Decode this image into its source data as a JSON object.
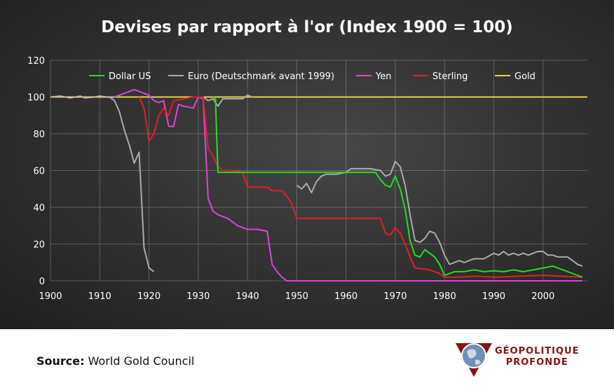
{
  "chart_data": {
    "type": "line",
    "title": "Devises par rapport à l'or (Index 1900 = 100)",
    "xlabel": "",
    "ylabel": "",
    "xlim": [
      1900,
      2009
    ],
    "ylim": [
      0,
      120
    ],
    "xticks": [
      1900,
      1910,
      1920,
      1930,
      1940,
      1950,
      1960,
      1970,
      1980,
      1990,
      2000
    ],
    "yticks": [
      0,
      20,
      40,
      60,
      80,
      100,
      120
    ],
    "grid": true,
    "legend": "top",
    "series": [
      {
        "name": "Dollar US",
        "color": "#22dd22",
        "points": [
          [
            1933,
            100
          ],
          [
            1933.5,
            99
          ],
          [
            1934,
            59
          ],
          [
            1966,
            59
          ],
          [
            1967,
            55
          ],
          [
            1968,
            52
          ],
          [
            1969,
            51
          ],
          [
            1970,
            57
          ],
          [
            1971,
            50
          ],
          [
            1972,
            39
          ],
          [
            1973,
            22
          ],
          [
            1974,
            14
          ],
          [
            1975,
            13
          ],
          [
            1976,
            17
          ],
          [
            1977,
            15
          ],
          [
            1978,
            13
          ],
          [
            1979,
            9
          ],
          [
            1980,
            3
          ],
          [
            1982,
            5
          ],
          [
            1984,
            5
          ],
          [
            1986,
            6
          ],
          [
            1988,
            5
          ],
          [
            1990,
            5.5
          ],
          [
            1992,
            5
          ],
          [
            1994,
            6
          ],
          [
            1996,
            5
          ],
          [
            1998,
            6
          ],
          [
            2000,
            7
          ],
          [
            2002,
            8
          ],
          [
            2004,
            6
          ],
          [
            2006,
            4
          ],
          [
            2008,
            2
          ]
        ]
      },
      {
        "name": "Euro (Deutschmark avant 1999)",
        "color": "#aaaaaa",
        "segments": [
          [
            [
              1912,
              100
            ],
            [
              1913,
              98
            ],
            [
              1914,
              92
            ],
            [
              1915,
              82
            ],
            [
              1916,
              74
            ],
            [
              1917,
              64
            ],
            [
              1918,
              70
            ],
            [
              1918.5,
              44
            ],
            [
              1919,
              18
            ],
            [
              1920,
              7
            ],
            [
              1921,
              5
            ]
          ],
          [
            [
              1931,
              100
            ],
            [
              1932,
              98
            ],
            [
              1933,
              99
            ],
            [
              1934,
              95
            ],
            [
              1935,
              99
            ],
            [
              1937,
              99
            ],
            [
              1939,
              99
            ],
            [
              1940,
              101
            ],
            [
              1941,
              100
            ]
          ],
          [
            [
              1950,
              52
            ],
            [
              1951,
              50
            ],
            [
              1952,
              53
            ],
            [
              1953,
              48
            ],
            [
              1954,
              54
            ],
            [
              1955,
              57
            ],
            [
              1956,
              58
            ],
            [
              1958,
              58
            ],
            [
              1960,
              59
            ],
            [
              1961,
              61
            ],
            [
              1963,
              61
            ],
            [
              1965,
              61
            ],
            [
              1967,
              60
            ],
            [
              1968,
              57
            ],
            [
              1969,
              58
            ],
            [
              1970,
              65
            ],
            [
              1971,
              62
            ],
            [
              1972,
              52
            ],
            [
              1973,
              36
            ],
            [
              1974,
              22
            ],
            [
              1975,
              21
            ],
            [
              1976,
              23
            ],
            [
              1977,
              27
            ],
            [
              1978,
              26
            ],
            [
              1979,
              21
            ],
            [
              1980,
              14
            ],
            [
              1981,
              9
            ],
            [
              1982,
              10
            ],
            [
              1983,
              11
            ],
            [
              1984,
              10
            ],
            [
              1985,
              11
            ],
            [
              1986,
              12
            ],
            [
              1988,
              12
            ],
            [
              1990,
              15
            ],
            [
              1991,
              14
            ],
            [
              1992,
              16
            ],
            [
              1993,
              14
            ],
            [
              1994,
              15
            ],
            [
              1995,
              14
            ],
            [
              1996,
              15
            ],
            [
              1997,
              14
            ],
            [
              1998,
              15
            ],
            [
              1999,
              16
            ],
            [
              2000,
              16
            ],
            [
              2001,
              14
            ],
            [
              2002,
              14
            ],
            [
              2003,
              13
            ],
            [
              2005,
              13
            ],
            [
              2006,
              11
            ],
            [
              2007,
              9
            ],
            [
              2008,
              8
            ]
          ]
        ]
      },
      {
        "name": "Yen",
        "color": "#e040e0",
        "points": [
          [
            1913,
            100
          ],
          [
            1914,
            101
          ],
          [
            1915,
            102
          ],
          [
            1916,
            103
          ],
          [
            1917,
            104
          ],
          [
            1918,
            103
          ],
          [
            1920,
            101
          ],
          [
            1921,
            98
          ],
          [
            1922,
            97
          ],
          [
            1923,
            98
          ],
          [
            1924,
            84
          ],
          [
            1925,
            84
          ],
          [
            1926,
            96
          ],
          [
            1927,
            95
          ],
          [
            1929,
            94
          ],
          [
            1930,
            100
          ],
          [
            1931,
            99
          ],
          [
            1932,
            45
          ],
          [
            1933,
            38
          ],
          [
            1934,
            36
          ],
          [
            1936,
            34
          ],
          [
            1938,
            30
          ],
          [
            1939,
            29
          ],
          [
            1940,
            28
          ],
          [
            1942,
            28
          ],
          [
            1944,
            27
          ],
          [
            1945,
            9
          ],
          [
            1946,
            5
          ],
          [
            1947,
            2
          ],
          [
            1948,
            0
          ],
          [
            1955,
            0
          ],
          [
            2008,
            0
          ]
        ]
      },
      {
        "name": "Sterling",
        "color": "#e02020",
        "points": [
          [
            1918,
            100
          ],
          [
            1919,
            94
          ],
          [
            1920,
            76
          ],
          [
            1921,
            80
          ],
          [
            1922,
            90
          ],
          [
            1923,
            94
          ],
          [
            1924,
            90
          ],
          [
            1925,
            98
          ],
          [
            1929,
            100
          ],
          [
            1931,
            100
          ],
          [
            1932,
            72
          ],
          [
            1933,
            68
          ],
          [
            1934,
            62
          ],
          [
            1935,
            60
          ],
          [
            1937,
            60
          ],
          [
            1939,
            59
          ],
          [
            1940,
            51
          ],
          [
            1944,
            51
          ],
          [
            1945,
            49
          ],
          [
            1947,
            49
          ],
          [
            1948,
            46
          ],
          [
            1949,
            42
          ],
          [
            1950,
            34
          ],
          [
            1967,
            34
          ],
          [
            1968,
            26
          ],
          [
            1969,
            25
          ],
          [
            1970,
            29
          ],
          [
            1971,
            26
          ],
          [
            1972,
            20
          ],
          [
            1973,
            13
          ],
          [
            1974,
            7
          ],
          [
            1977,
            6
          ],
          [
            1979,
            4
          ],
          [
            1980,
            2
          ],
          [
            1983,
            2
          ],
          [
            1986,
            2.5
          ],
          [
            1990,
            2
          ],
          [
            1995,
            2.5
          ],
          [
            2000,
            3
          ],
          [
            2008,
            2
          ]
        ]
      },
      {
        "name": "Gold",
        "color": "#e8d23c",
        "points": [
          [
            1900,
            100
          ],
          [
            2009,
            100
          ]
        ]
      },
      {
        "name": "",
        "color": "#bbbbbb",
        "points": [
          [
            1900,
            100
          ],
          [
            1902,
            100.5
          ],
          [
            1904,
            99.5
          ],
          [
            1906,
            100.5
          ],
          [
            1907,
            99.5
          ],
          [
            1909,
            100
          ],
          [
            1910,
            100.5
          ],
          [
            1912,
            99.8
          ],
          [
            1913,
            100
          ]
        ]
      }
    ]
  },
  "footer": {
    "source_label": "Source:",
    "source_value": "World Gold Council"
  },
  "logo": {
    "line1": "GÉOPOLITIQUE",
    "line2": "PROFONDE",
    "color": "#8a1111",
    "icon": "globe-icon"
  }
}
